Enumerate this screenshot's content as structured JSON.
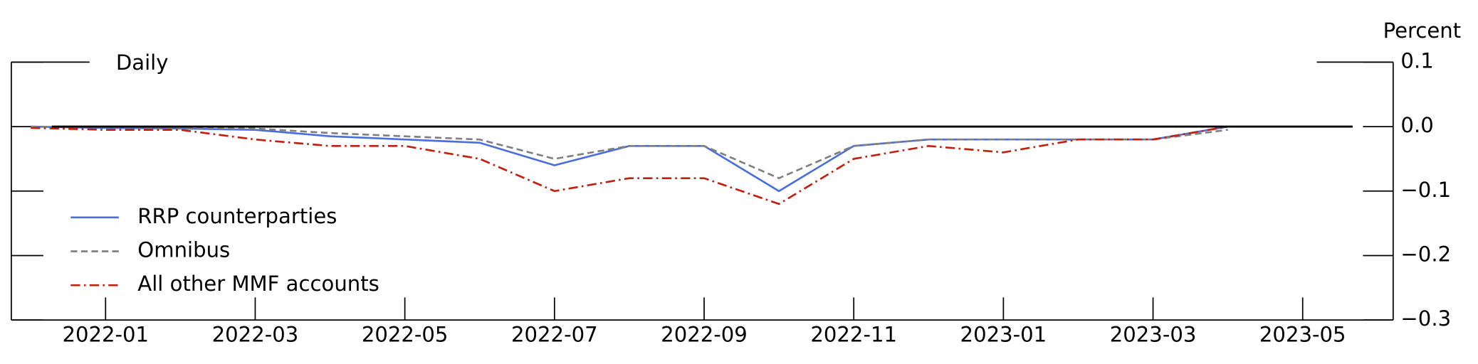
{
  "chart_data": {
    "type": "line",
    "annotations": {
      "unit": "Percent",
      "frequency": "Daily"
    },
    "x": [
      "2021-12",
      "2022-01",
      "2022-02",
      "2022-03",
      "2022-04",
      "2022-05",
      "2022-06",
      "2022-07",
      "2022-08",
      "2022-09",
      "2022-10",
      "2022-11",
      "2022-12",
      "2023-01",
      "2023-02",
      "2023-03",
      "2023-04"
    ],
    "series": [
      {
        "name": "RRP counterparties",
        "color": "#4a6fdc",
        "dash": "solid",
        "values": [
          0.0,
          -0.002,
          -0.003,
          -0.005,
          -0.015,
          -0.02,
          -0.025,
          -0.06,
          -0.03,
          -0.03,
          -0.1,
          -0.03,
          -0.02,
          -0.02,
          -0.02,
          -0.02,
          0.0
        ]
      },
      {
        "name": "Omnibus",
        "color": "#808080",
        "dash": "dashed",
        "values": [
          0.0,
          -0.001,
          -0.002,
          -0.003,
          -0.01,
          -0.015,
          -0.02,
          -0.05,
          -0.03,
          -0.03,
          -0.08,
          -0.03,
          -0.02,
          -0.02,
          -0.02,
          -0.02,
          -0.005
        ]
      },
      {
        "name": "All other MMF accounts",
        "color": "#c0200e",
        "dash": "dashdot",
        "values": [
          -0.002,
          -0.005,
          -0.005,
          -0.02,
          -0.03,
          -0.03,
          -0.05,
          -0.1,
          -0.08,
          -0.08,
          -0.12,
          -0.05,
          -0.03,
          -0.04,
          -0.02,
          -0.02,
          0.0
        ]
      }
    ],
    "xticks": [
      "2022-01",
      "2022-03",
      "2022-05",
      "2022-07",
      "2022-09",
      "2022-11",
      "2023-01",
      "2023-03",
      "2023-05"
    ],
    "ylim": [
      -0.3,
      0.1
    ],
    "yticks": [
      {
        "value": 0.1,
        "label": "0.1"
      },
      {
        "value": 0.0,
        "label": "0.0"
      },
      {
        "value": -0.1,
        "label": "−0.1"
      },
      {
        "value": -0.2,
        "label": "−0.2"
      },
      {
        "value": -0.3,
        "label": "−0.3"
      }
    ],
    "zero_line": 0,
    "legend": "lower left"
  }
}
